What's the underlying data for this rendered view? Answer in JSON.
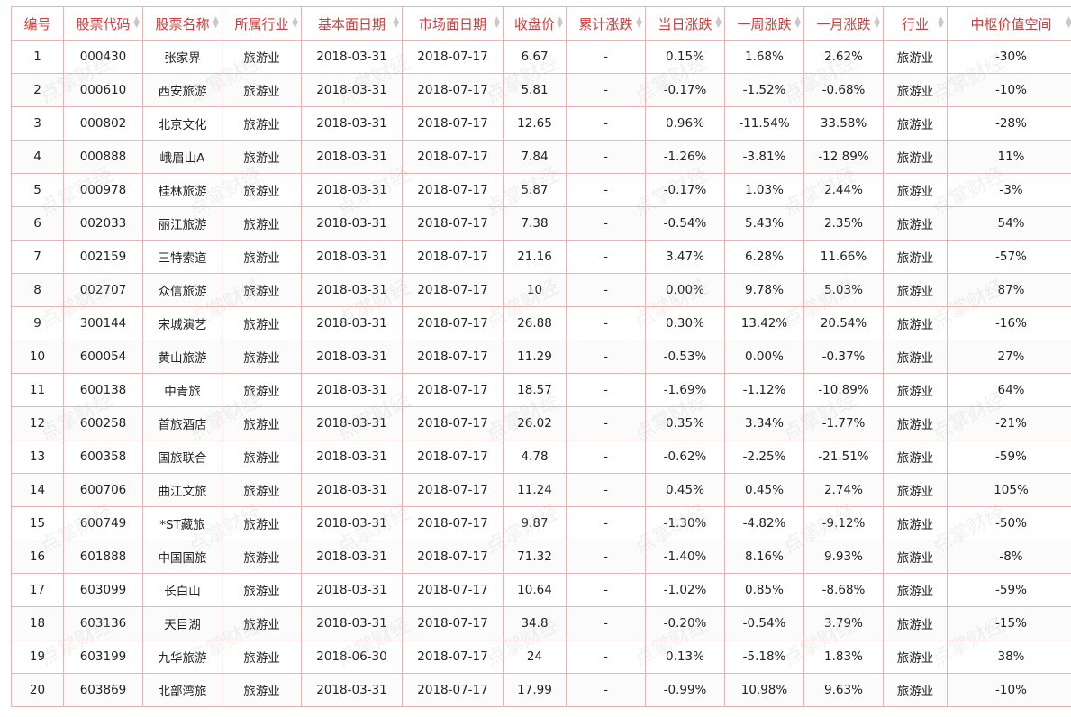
{
  "table": {
    "columns": [
      {
        "label": "编号",
        "sortable": false
      },
      {
        "label": "股票代码",
        "sortable": true
      },
      {
        "label": "股票名称",
        "sortable": true
      },
      {
        "label": "所属行业",
        "sortable": true
      },
      {
        "label": "基本面日期",
        "sortable": true
      },
      {
        "label": "市场面日期",
        "sortable": true
      },
      {
        "label": "收盘价",
        "sortable": true
      },
      {
        "label": "累计涨跌",
        "sortable": true
      },
      {
        "label": "当日涨跌",
        "sortable": true
      },
      {
        "label": "一周涨跌",
        "sortable": true
      },
      {
        "label": "一月涨跌",
        "sortable": true
      },
      {
        "label": "行业",
        "sortable": true
      },
      {
        "label": "中枢价值空间",
        "sortable": true
      }
    ],
    "rows": [
      [
        "1",
        "000430",
        "张家界",
        "旅游业",
        "2018-03-31",
        "2018-07-17",
        "6.67",
        "-",
        "0.15%",
        "1.68%",
        "2.62%",
        "旅游业",
        "-30%"
      ],
      [
        "2",
        "000610",
        "西安旅游",
        "旅游业",
        "2018-03-31",
        "2018-07-17",
        "5.81",
        "-",
        "-0.17%",
        "-1.52%",
        "-0.68%",
        "旅游业",
        "-10%"
      ],
      [
        "3",
        "000802",
        "北京文化",
        "旅游业",
        "2018-03-31",
        "2018-07-17",
        "12.65",
        "-",
        "0.96%",
        "-11.54%",
        "33.58%",
        "旅游业",
        "-28%"
      ],
      [
        "4",
        "000888",
        "峨眉山A",
        "旅游业",
        "2018-03-31",
        "2018-07-17",
        "7.84",
        "-",
        "-1.26%",
        "-3.81%",
        "-12.89%",
        "旅游业",
        "11%"
      ],
      [
        "5",
        "000978",
        "桂林旅游",
        "旅游业",
        "2018-03-31",
        "2018-07-17",
        "5.87",
        "-",
        "-0.17%",
        "1.03%",
        "2.44%",
        "旅游业",
        "-3%"
      ],
      [
        "6",
        "002033",
        "丽江旅游",
        "旅游业",
        "2018-03-31",
        "2018-07-17",
        "7.38",
        "-",
        "-0.54%",
        "5.43%",
        "2.35%",
        "旅游业",
        "54%"
      ],
      [
        "7",
        "002159",
        "三特索道",
        "旅游业",
        "2018-03-31",
        "2018-07-17",
        "21.16",
        "-",
        "3.47%",
        "6.28%",
        "11.66%",
        "旅游业",
        "-57%"
      ],
      [
        "8",
        "002707",
        "众信旅游",
        "旅游业",
        "2018-03-31",
        "2018-07-17",
        "10",
        "-",
        "0.00%",
        "9.78%",
        "5.03%",
        "旅游业",
        "87%"
      ],
      [
        "9",
        "300144",
        "宋城演艺",
        "旅游业",
        "2018-03-31",
        "2018-07-17",
        "26.88",
        "-",
        "0.30%",
        "13.42%",
        "20.54%",
        "旅游业",
        "-16%"
      ],
      [
        "10",
        "600054",
        "黄山旅游",
        "旅游业",
        "2018-03-31",
        "2018-07-17",
        "11.29",
        "-",
        "-0.53%",
        "0.00%",
        "-0.37%",
        "旅游业",
        "27%"
      ],
      [
        "11",
        "600138",
        "中青旅",
        "旅游业",
        "2018-03-31",
        "2018-07-17",
        "18.57",
        "-",
        "-1.69%",
        "-1.12%",
        "-10.89%",
        "旅游业",
        "64%"
      ],
      [
        "12",
        "600258",
        "首旅酒店",
        "旅游业",
        "2018-03-31",
        "2018-07-17",
        "26.02",
        "-",
        "0.35%",
        "3.34%",
        "-1.77%",
        "旅游业",
        "-21%"
      ],
      [
        "13",
        "600358",
        "国旅联合",
        "旅游业",
        "2018-03-31",
        "2018-07-17",
        "4.78",
        "-",
        "-0.62%",
        "-2.25%",
        "-21.51%",
        "旅游业",
        "-59%"
      ],
      [
        "14",
        "600706",
        "曲江文旅",
        "旅游业",
        "2018-03-31",
        "2018-07-17",
        "11.24",
        "-",
        "0.45%",
        "0.45%",
        "2.74%",
        "旅游业",
        "105%"
      ],
      [
        "15",
        "600749",
        "*ST藏旅",
        "旅游业",
        "2018-03-31",
        "2018-07-17",
        "9.87",
        "-",
        "-1.30%",
        "-4.82%",
        "-9.12%",
        "旅游业",
        "-50%"
      ],
      [
        "16",
        "601888",
        "中国国旅",
        "旅游业",
        "2018-03-31",
        "2018-07-17",
        "71.32",
        "-",
        "-1.40%",
        "8.16%",
        "9.93%",
        "旅游业",
        "-8%"
      ],
      [
        "17",
        "603099",
        "长白山",
        "旅游业",
        "2018-03-31",
        "2018-07-17",
        "10.64",
        "-",
        "-1.02%",
        "0.85%",
        "-8.68%",
        "旅游业",
        "-59%"
      ],
      [
        "18",
        "603136",
        "天目湖",
        "旅游业",
        "2018-03-31",
        "2018-07-17",
        "34.8",
        "-",
        "-0.20%",
        "-0.54%",
        "3.79%",
        "旅游业",
        "-15%"
      ],
      [
        "19",
        "603199",
        "九华旅游",
        "旅游业",
        "2018-06-30",
        "2018-07-17",
        "24",
        "-",
        "0.13%",
        "-5.18%",
        "1.83%",
        "旅游业",
        "38%"
      ],
      [
        "20",
        "603869",
        "北部湾旅",
        "旅游业",
        "2018-03-31",
        "2018-07-17",
        "17.99",
        "-",
        "-0.99%",
        "10.98%",
        "9.63%",
        "旅游业",
        "-10%"
      ]
    ]
  },
  "watermark": {
    "text": "点掌财经"
  },
  "colors": {
    "header_text": "#d23b3b",
    "border": "#e7b3b3"
  }
}
